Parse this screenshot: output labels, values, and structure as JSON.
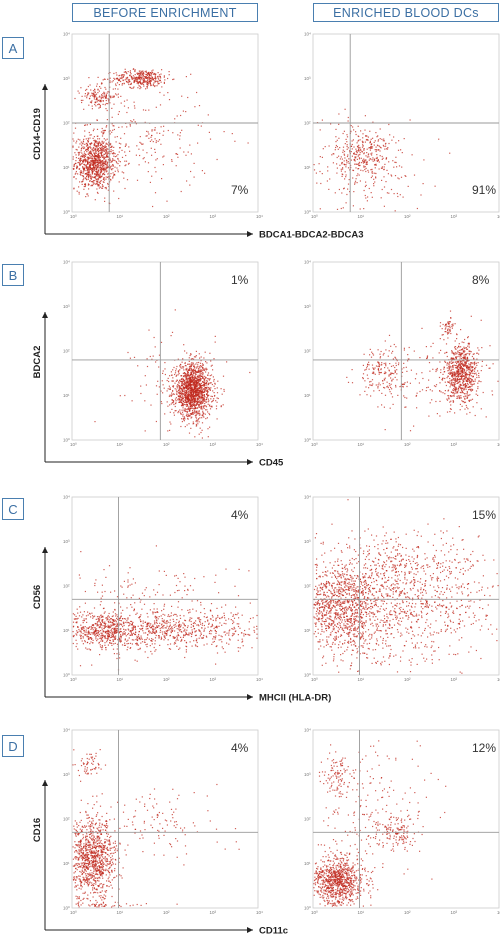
{
  "columns": {
    "left": "BEFORE ENRICHMENT",
    "right": "ENRICHED BLOOD DCs"
  },
  "chart_data": [
    {
      "type": "scatter",
      "row": "A",
      "xlabel": "BDCA1-BDCA2-BDCA3",
      "ylabel": "CD14-CD19",
      "x_scale": "log",
      "y_scale": "log",
      "ticks": [
        "10⁰",
        "10¹",
        "10²",
        "10³",
        "10⁴"
      ],
      "panels": [
        {
          "column": "BEFORE ENRICHMENT",
          "percent": "7%",
          "gate_x": 0.8,
          "gate_y": 2.0,
          "populations": [
            {
              "cx": 0.5,
              "cy": 1.1,
              "sx": 0.22,
              "sy": 0.3,
              "n": 900
            },
            {
              "cx": 1.5,
              "cy": 3.0,
              "sx": 0.3,
              "sy": 0.1,
              "n": 350
            },
            {
              "cx": 0.6,
              "cy": 2.6,
              "sx": 0.2,
              "sy": 0.12,
              "n": 150
            },
            {
              "cx": 1.2,
              "cy": 1.6,
              "sx": 0.9,
              "sy": 0.6,
              "n": 300
            }
          ]
        },
        {
          "column": "ENRICHED BLOOD DCs",
          "percent": "91%",
          "gate_x": 0.8,
          "gate_y": 2.0,
          "populations": [
            {
              "cx": 1.1,
              "cy": 1.3,
              "sx": 0.3,
              "sy": 0.3,
              "n": 260
            },
            {
              "cx": 1.0,
              "cy": 1.0,
              "sx": 0.7,
              "sy": 0.55,
              "n": 220
            }
          ]
        }
      ]
    },
    {
      "type": "scatter",
      "row": "B",
      "xlabel": "CD45",
      "ylabel": "BDCA2",
      "x_scale": "log",
      "y_scale": "log",
      "ticks": [
        "10⁰",
        "10¹",
        "10²",
        "10³",
        "10⁴"
      ],
      "panels": [
        {
          "column": "BEFORE ENRICHMENT",
          "percent": "1%",
          "gate_x": 1.9,
          "gate_y": 1.8,
          "populations": [
            {
              "cx": 2.6,
              "cy": 1.1,
              "sx": 0.2,
              "sy": 0.3,
              "n": 1400
            },
            {
              "cx": 2.3,
              "cy": 1.3,
              "sx": 0.5,
              "sy": 0.6,
              "n": 120
            }
          ]
        },
        {
          "column": "ENRICHED BLOOD DCs",
          "percent": "8%",
          "gate_x": 1.9,
          "gate_y": 1.8,
          "populations": [
            {
              "cx": 3.2,
              "cy": 1.5,
              "sx": 0.18,
              "sy": 0.32,
              "n": 700
            },
            {
              "cx": 1.5,
              "cy": 1.5,
              "sx": 0.25,
              "sy": 0.28,
              "n": 180
            },
            {
              "cx": 2.9,
              "cy": 2.5,
              "sx": 0.08,
              "sy": 0.12,
              "n": 50
            },
            {
              "cx": 2.6,
              "cy": 1.4,
              "sx": 0.6,
              "sy": 0.5,
              "n": 140
            }
          ]
        }
      ]
    },
    {
      "type": "scatter",
      "row": "C",
      "xlabel": "MHCII (HLA-DR)",
      "ylabel": "CD56",
      "x_scale": "log",
      "y_scale": "log",
      "ticks": [
        "10⁰",
        "10¹",
        "10²",
        "10³",
        "10⁴"
      ],
      "panels": [
        {
          "column": "BEFORE ENRICHMENT",
          "percent": "4%",
          "gate_x": 1.0,
          "gate_y": 1.7,
          "populations": [
            {
              "cx": 0.7,
              "cy": 1.0,
              "sx": 0.4,
              "sy": 0.22,
              "n": 500
            },
            {
              "cx": 2.1,
              "cy": 1.0,
              "sx": 1.0,
              "sy": 0.22,
              "n": 600
            },
            {
              "cx": 1.8,
              "cy": 1.5,
              "sx": 1.1,
              "sy": 0.5,
              "n": 250
            }
          ]
        },
        {
          "column": "ENRICHED BLOOD DCs",
          "percent": "15%",
          "gate_x": 1.0,
          "gate_y": 1.7,
          "populations": [
            {
              "cx": 0.6,
              "cy": 1.5,
              "sx": 0.45,
              "sy": 0.5,
              "n": 1000
            },
            {
              "cx": 2.0,
              "cy": 1.6,
              "sx": 1.0,
              "sy": 0.7,
              "n": 900
            },
            {
              "cx": 1.8,
              "cy": 2.4,
              "sx": 0.9,
              "sy": 0.4,
              "n": 250
            }
          ]
        }
      ]
    },
    {
      "type": "scatter",
      "row": "D",
      "xlabel": "CD11c",
      "ylabel": "CD16",
      "x_scale": "log",
      "y_scale": "log",
      "ticks": [
        "10⁰",
        "10¹",
        "10²",
        "10³",
        "10⁴"
      ],
      "panels": [
        {
          "column": "BEFORE ENRICHMENT",
          "percent": "4%",
          "gate_x": 1.0,
          "gate_y": 1.7,
          "populations": [
            {
              "cx": 0.45,
              "cy": 1.1,
              "sx": 0.25,
              "sy": 0.45,
              "n": 1000
            },
            {
              "cx": 0.4,
              "cy": 3.2,
              "sx": 0.15,
              "sy": 0.15,
              "n": 60
            },
            {
              "cx": 1.8,
              "cy": 1.9,
              "sx": 0.7,
              "sy": 0.4,
              "n": 120
            },
            {
              "cx": 0.5,
              "cy": 0.05,
              "sx": 0.6,
              "sy": 0.05,
              "n": 80
            }
          ]
        },
        {
          "column": "ENRICHED BLOOD DCs",
          "percent": "12%",
          "gate_x": 1.0,
          "gate_y": 1.7,
          "populations": [
            {
              "cx": 0.55,
              "cy": 0.6,
              "sx": 0.28,
              "sy": 0.28,
              "n": 900
            },
            {
              "cx": 1.8,
              "cy": 1.7,
              "sx": 0.2,
              "sy": 0.2,
              "n": 120
            },
            {
              "cx": 0.5,
              "cy": 3.0,
              "sx": 0.15,
              "sy": 0.25,
              "n": 90
            },
            {
              "cx": 1.3,
              "cy": 2.2,
              "sx": 0.7,
              "sy": 0.7,
              "n": 200
            }
          ]
        }
      ]
    }
  ],
  "colors": {
    "dot": "#c0281e",
    "gate": "#999999",
    "frame": "#cccccc",
    "accent": "#4a7fb0"
  }
}
